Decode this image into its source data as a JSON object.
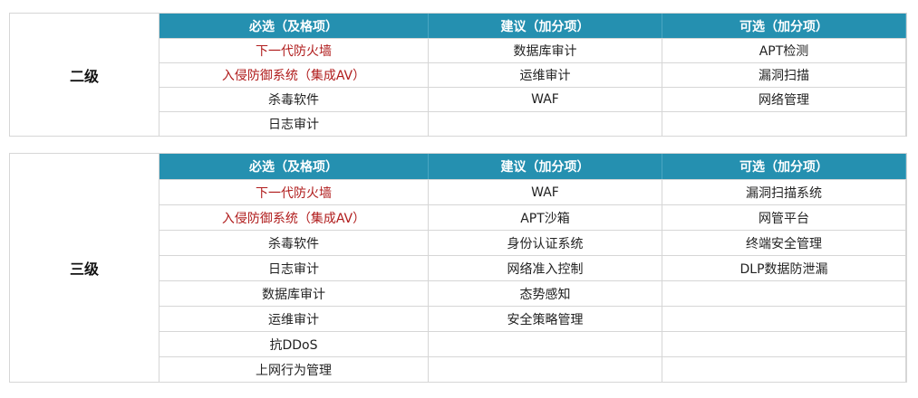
{
  "colors": {
    "header": "#2590b0",
    "required_highlight": "#b01c1c"
  },
  "tables": [
    {
      "level": "二级",
      "headers": [
        "必选（及格项）",
        "建议（加分项）",
        "可选（加分项）"
      ],
      "rows": [
        [
          {
            "t": "下一代防火墙",
            "red": true
          },
          {
            "t": "数据库审计"
          },
          {
            "t": "APT检测"
          }
        ],
        [
          {
            "t": "入侵防御系统（集成AV）",
            "red": true
          },
          {
            "t": "运维审计"
          },
          {
            "t": "漏洞扫描"
          }
        ],
        [
          {
            "t": "杀毒软件"
          },
          {
            "t": "WAF"
          },
          {
            "t": "网络管理"
          }
        ],
        [
          {
            "t": "日志审计"
          },
          {
            "t": ""
          },
          {
            "t": ""
          }
        ]
      ]
    },
    {
      "level": "三级",
      "headers": [
        "必选（及格项）",
        "建议（加分项）",
        "可选（加分项）"
      ],
      "rows": [
        [
          {
            "t": "下一代防火墙",
            "red": true
          },
          {
            "t": "WAF"
          },
          {
            "t": "漏洞扫描系统"
          }
        ],
        [
          {
            "t": "入侵防御系统（集成AV）",
            "red": true
          },
          {
            "t": "APT沙箱"
          },
          {
            "t": "网管平台"
          }
        ],
        [
          {
            "t": "杀毒软件"
          },
          {
            "t": "身份认证系统"
          },
          {
            "t": "终端安全管理"
          }
        ],
        [
          {
            "t": "日志审计"
          },
          {
            "t": "网络准入控制"
          },
          {
            "t": "DLP数据防泄漏"
          }
        ],
        [
          {
            "t": "数据库审计"
          },
          {
            "t": "态势感知"
          },
          {
            "t": ""
          }
        ],
        [
          {
            "t": "运维审计"
          },
          {
            "t": "安全策略管理"
          },
          {
            "t": ""
          }
        ],
        [
          {
            "t": "抗DDoS"
          },
          {
            "t": ""
          },
          {
            "t": ""
          }
        ],
        [
          {
            "t": "上网行为管理"
          },
          {
            "t": ""
          },
          {
            "t": ""
          }
        ]
      ]
    }
  ]
}
